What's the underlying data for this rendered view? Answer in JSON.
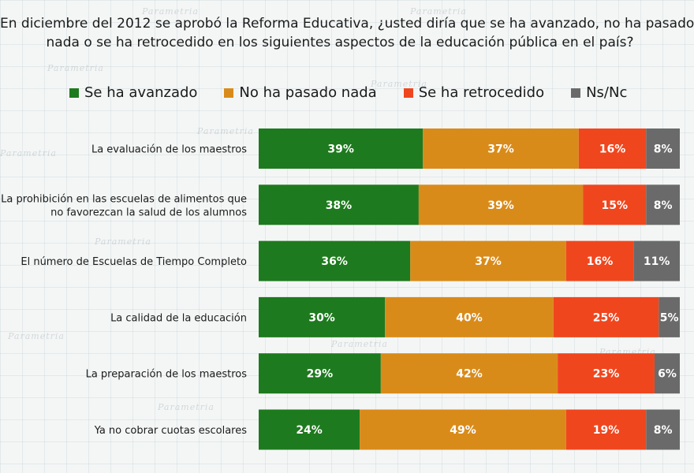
{
  "title": {
    "line1": "En diciembre del 2012 se aprobó la Reforma Educativa, ¿usted diría que se ha avanzado, no ha pasado",
    "line2": "nada o se ha retrocedido en los siguientes aspectos de la educación pública en el país?"
  },
  "watermark_text": "Parametria",
  "colors": {
    "Se ha avanzado": "#1e7a1e",
    "No ha pasado nada": "#d98b1a",
    "Se ha retrocedido": "#f0461e",
    "Ns/Nc": "#6a6a6a"
  },
  "chart_data": {
    "type": "bar",
    "orientation": "horizontal",
    "stacked": true,
    "categories": [
      [
        "La evaluación de los maestros"
      ],
      [
        "La prohibición en las escuelas de alimentos que",
        "no favorezcan la salud de los alumnos"
      ],
      [
        "El número de Escuelas de Tiempo Completo"
      ],
      [
        "La calidad de la educación"
      ],
      [
        "La preparación de los maestros"
      ],
      [
        "Ya no cobrar cuotas escolares"
      ]
    ],
    "series": [
      {
        "name": "Se ha avanzado",
        "values": [
          39,
          38,
          36,
          30,
          29,
          24
        ]
      },
      {
        "name": "No ha pasado nada",
        "values": [
          37,
          39,
          37,
          40,
          42,
          49
        ]
      },
      {
        "name": "Se ha retrocedido",
        "values": [
          16,
          15,
          16,
          25,
          23,
          19
        ]
      },
      {
        "name": "Ns/Nc",
        "values": [
          8,
          8,
          11,
          5,
          6,
          8
        ]
      }
    ],
    "value_suffix": "%",
    "legend_position": "top",
    "grid": false
  }
}
